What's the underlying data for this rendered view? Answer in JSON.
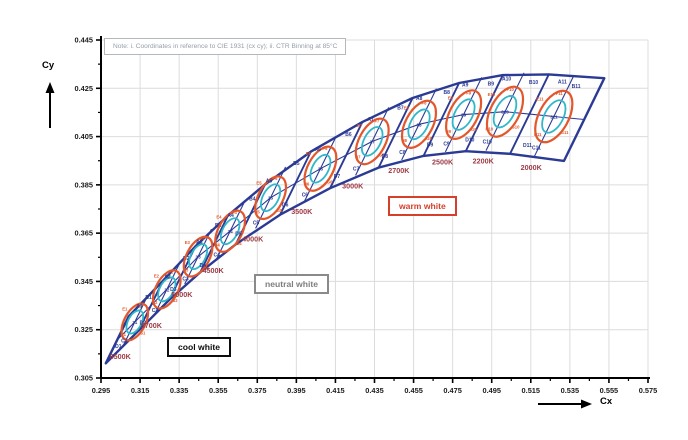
{
  "note": "Note: i. Coordinates in reference to CIE 1931 (cx cy); ii. CTR Binning at 85°C",
  "regions": {
    "cool": "cool white",
    "neutral": "neutral white",
    "warm": "warm white"
  },
  "colors": {
    "navy": "#2b3a94",
    "orange": "#e2572b",
    "cyan": "#30b7c9",
    "cct_label": "#9e3a44",
    "grid": "#dcdcdc",
    "axis": "#000000",
    "tick_text": "#1a1a1a",
    "note_text": "#949ea8",
    "cool_region": "#0d0d0d",
    "neutral_region": "#7e7e7e",
    "warm_region": "#d5402b"
  },
  "chart_data": {
    "type": "scatter",
    "title": "",
    "xlabel": "Cx",
    "ylabel": "Cy",
    "x_axis": {
      "min": 0.295,
      "max": 0.575,
      "step": 0.02,
      "ticks": [
        "0.295",
        "0.315",
        "0.335",
        "0.355",
        "0.375",
        "0.395",
        "0.415",
        "0.435",
        "0.455",
        "0.475",
        "0.495",
        "0.515",
        "0.535",
        "0.555",
        "0.575"
      ]
    },
    "y_axis": {
      "min": 0.305,
      "max": 0.445,
      "step": 0.02,
      "ticks": [
        "0.445",
        "0.425",
        "0.405",
        "0.385",
        "0.365",
        "0.345",
        "0.325",
        "0.305"
      ]
    },
    "grid": true,
    "bins": [
      {
        "cct": "6500K",
        "cx": 0.3123,
        "cy": 0.3282,
        "quadrants": {
          "a": "A1",
          "b": "B1",
          "c": "C1",
          "d": "D1"
        },
        "ring": {
          "e": "E1",
          "f": "F1",
          "g": "G1",
          "h": "H1"
        },
        "center_bin": "31"
      },
      {
        "cct": "5700K",
        "cx": 0.3287,
        "cy": 0.3417,
        "quadrants": {
          "a": "A2",
          "b": "B2",
          "c": "C2",
          "d": "D2"
        },
        "ring": {
          "e": "E2",
          "f": "F2",
          "g": "G2",
          "h": "H2"
        },
        "center_bin": "32"
      },
      {
        "cct": "5000K",
        "cx": 0.3447,
        "cy": 0.3553,
        "quadrants": {
          "a": "A3",
          "b": "B3",
          "c": "C3",
          "d": "D3"
        },
        "ring": {
          "e": "E3",
          "f": "F3",
          "g": "G3",
          "h": "H3"
        },
        "center_bin": "33"
      },
      {
        "cct": "4500K",
        "cx": 0.3611,
        "cy": 0.3658,
        "quadrants": {
          "a": "A4",
          "b": "B4",
          "c": "C4",
          "d": "D4"
        },
        "ring": {
          "e": "E4",
          "f": "F4",
          "g": "G4",
          "h": "H4"
        },
        "center_bin": "34"
      },
      {
        "cct": "4000K",
        "cx": 0.3818,
        "cy": 0.3797,
        "quadrants": {
          "a": "A5",
          "b": "B5",
          "c": "C5",
          "d": "D5"
        },
        "ring": {
          "e": "E5",
          "f": "F5",
          "g": "G5",
          "h": "H5"
        },
        "center_bin": "35"
      },
      {
        "cct": "3500K",
        "cx": 0.4073,
        "cy": 0.3917,
        "quadrants": {
          "a": "A6",
          "b": "B6",
          "c": "C6",
          "d": "D6"
        },
        "ring": {
          "e": "E6",
          "f": "F6",
          "g": "G6",
          "h": "H6"
        },
        "center_bin": "36"
      },
      {
        "cct": "3000K",
        "cx": 0.4338,
        "cy": 0.403,
        "quadrants": {
          "a": "A7",
          "b": "B7",
          "c": "C7",
          "d": "D7"
        },
        "ring": {
          "e": "E7",
          "f": "F7",
          "g": "G7",
          "h": "H7"
        },
        "center_bin": "37"
      },
      {
        "cct": "2700K",
        "cx": 0.4578,
        "cy": 0.4101,
        "quadrants": {
          "a": "A8",
          "b": "B8",
          "c": "C8",
          "d": "D8"
        },
        "ring": {
          "e": "E8",
          "f": "F8",
          "g": "G8",
          "h": "H8"
        },
        "center_bin": "38"
      },
      {
        "cct": "2500K",
        "cx": 0.4806,
        "cy": 0.4141,
        "quadrants": {
          "a": "A9",
          "b": "B9",
          "c": "C9",
          "d": "D9"
        },
        "ring": {
          "e": "E9",
          "f": "F9",
          "g": "G9",
          "h": "H9"
        },
        "center_bin": "39"
      },
      {
        "cct": "2200K",
        "cx": 0.5018,
        "cy": 0.4153,
        "quadrants": {
          "a": "A10",
          "b": "B10",
          "c": "C10",
          "d": "D10"
        },
        "ring": {
          "e": "E10",
          "f": "F10",
          "g": "G10",
          "h": "H10"
        },
        "center_bin": "310"
      },
      {
        "cct": "2000K",
        "cx": 0.5268,
        "cy": 0.4133,
        "quadrants": {
          "a": "A11",
          "b": "B11",
          "c": "C11",
          "d": "D11"
        },
        "ring": {
          "e": "E11",
          "f": "F11",
          "g": "G11",
          "h": "H11"
        },
        "center_bin": "311"
      }
    ],
    "legend_regions": [
      {
        "label": "cool white",
        "near_cct": "6500K"
      },
      {
        "label": "neutral white",
        "near_cct": "4000K"
      },
      {
        "label": "warm white",
        "near_cct": "3000K-2000K"
      }
    ],
    "ellipses": {
      "outer": "5-step (orange)",
      "inner": "3-step (cyan)"
    }
  }
}
